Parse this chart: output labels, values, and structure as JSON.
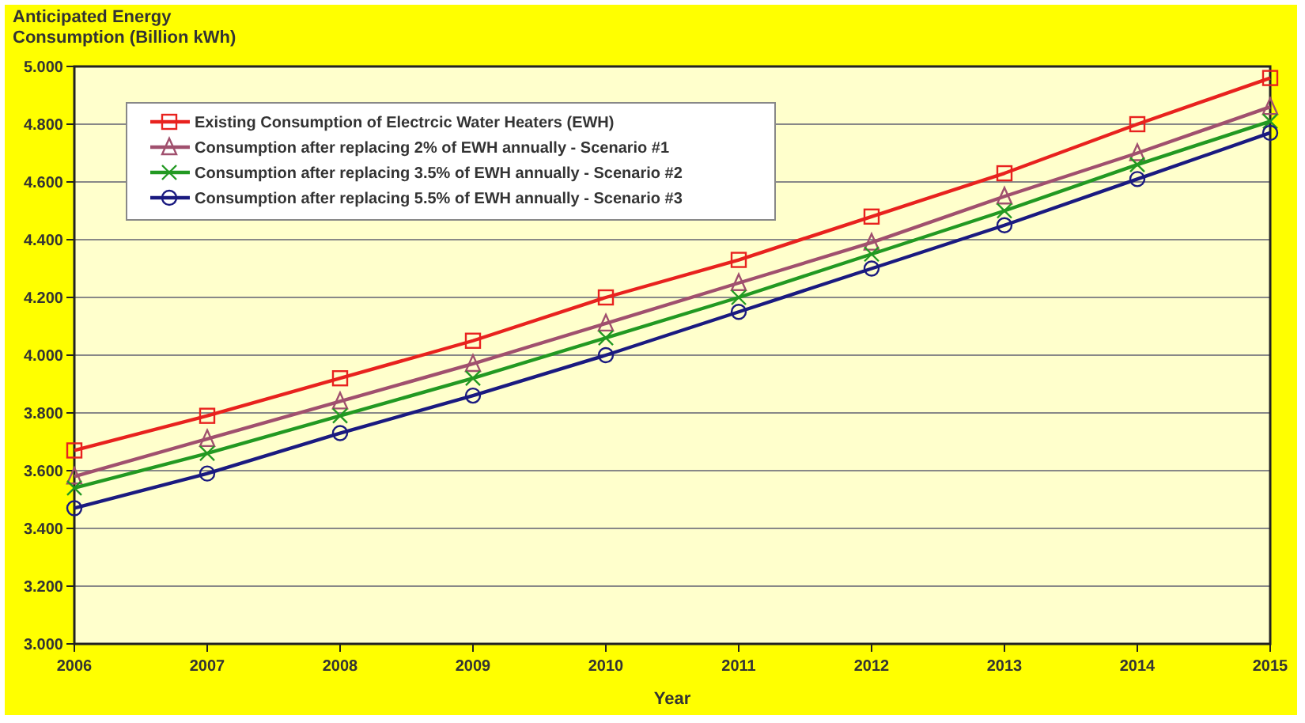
{
  "chart_data": {
    "type": "line",
    "ylabel": "Anticipated Energy\nConsumption (Billion kWh)",
    "xlabel": "Year",
    "categories": [
      "2006",
      "2007",
      "2008",
      "2009",
      "2010",
      "2011",
      "2012",
      "2013",
      "2014",
      "2015"
    ],
    "ylim": [
      3,
      5
    ],
    "yticks": [
      {
        "value": 3,
        "label": "3.000"
      },
      {
        "value": 3.2,
        "label": "3.200"
      },
      {
        "value": 3.4,
        "label": "3.400"
      },
      {
        "value": 3.6,
        "label": "3.600"
      },
      {
        "value": 3.8,
        "label": "3.800"
      },
      {
        "value": 4,
        "label": "4.000"
      },
      {
        "value": 4.2,
        "label": "4.200"
      },
      {
        "value": 4.4,
        "label": "4.400"
      },
      {
        "value": 4.6,
        "label": "4.600"
      },
      {
        "value": 4.8,
        "label": "4.800"
      },
      {
        "value": 5,
        "label": "5.000"
      }
    ],
    "grid": "y",
    "legend": "top left",
    "series": [
      {
        "name": "Existing Consumption of Electrcic Water Heaters (EWH)",
        "color": "#e8221e",
        "marker": "square",
        "values": [
          3.67,
          3.79,
          3.92,
          4.05,
          4.2,
          4.33,
          4.48,
          4.63,
          4.8,
          4.96
        ]
      },
      {
        "name": "Consumption after replacing 2% of EWH annually - Scenario #1",
        "color": "#a0506e",
        "marker": "triangle",
        "values": [
          3.58,
          3.71,
          3.84,
          3.97,
          4.11,
          4.25,
          4.39,
          4.55,
          4.7,
          4.86
        ]
      },
      {
        "name": "Consumption after replacing 3.5% of EWH annually - Scenario #2",
        "color": "#229922",
        "marker": "cross",
        "values": [
          3.54,
          3.66,
          3.79,
          3.92,
          4.06,
          4.2,
          4.35,
          4.5,
          4.66,
          4.81
        ]
      },
      {
        "name": "Consumption after replacing 5.5% of EWH annually - Scenario #3",
        "color": "#1a1a80",
        "marker": "circle",
        "values": [
          3.47,
          3.59,
          3.73,
          3.86,
          4.0,
          4.15,
          4.3,
          4.45,
          4.61,
          4.77
        ]
      }
    ]
  }
}
